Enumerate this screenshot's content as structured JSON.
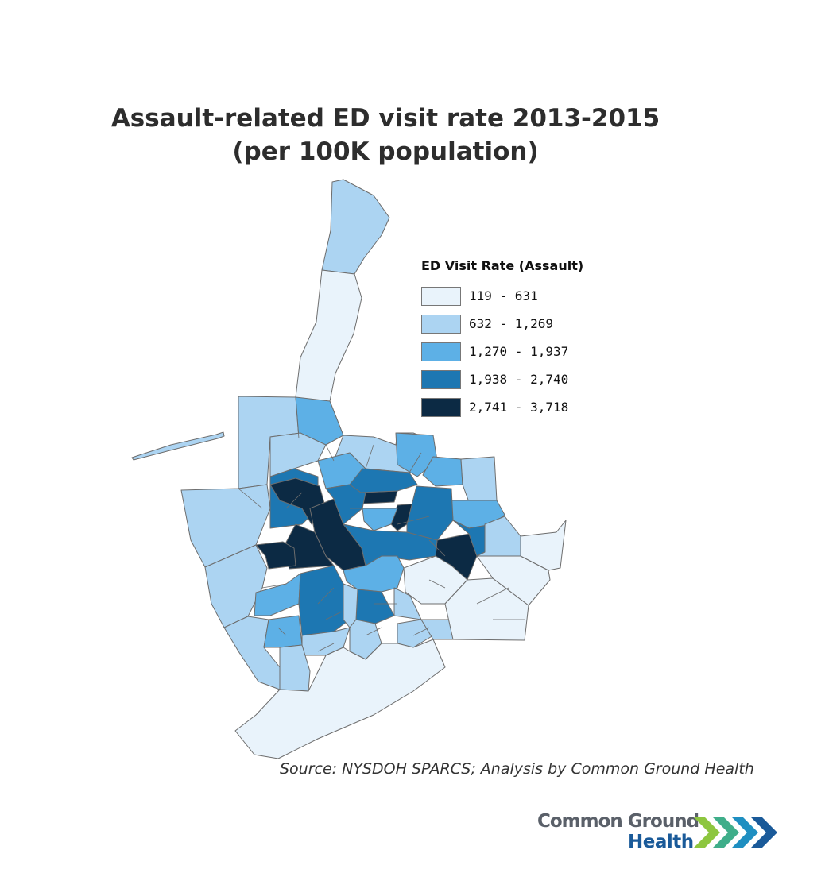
{
  "title": {
    "line1": "Assault-related ED visit rate 2013-2015",
    "line2": "(per 100K population)"
  },
  "legend": {
    "title": "ED Visit Rate (Assault)",
    "classes": [
      {
        "label": "119 - 631",
        "min": 119,
        "max": 631,
        "color": "#e9f3fb"
      },
      {
        "label": "632 - 1,269",
        "min": 632,
        "max": 1269,
        "color": "#acd4f2"
      },
      {
        "label": "1,270 - 1,937",
        "min": 1270,
        "max": 1937,
        "color": "#5db0e6"
      },
      {
        "label": "1,938 - 2,740",
        "min": 1938,
        "max": 2740,
        "color": "#1d77b2"
      },
      {
        "label": "2,741 - 3,718",
        "min": 2741,
        "max": 3718,
        "color": "#0c2a44"
      }
    ]
  },
  "source": "Source: NYSDOH SPARCS; Analysis by Common Ground Health",
  "logo": {
    "line1": "Common Ground",
    "line2": "Health",
    "chevron_colors": [
      "#8dc63f",
      "#3fae8a",
      "#1f8fc1",
      "#1a5a99"
    ]
  },
  "colors": {
    "boundary": "#6d6d6d",
    "text": "#2d2d2d"
  }
}
